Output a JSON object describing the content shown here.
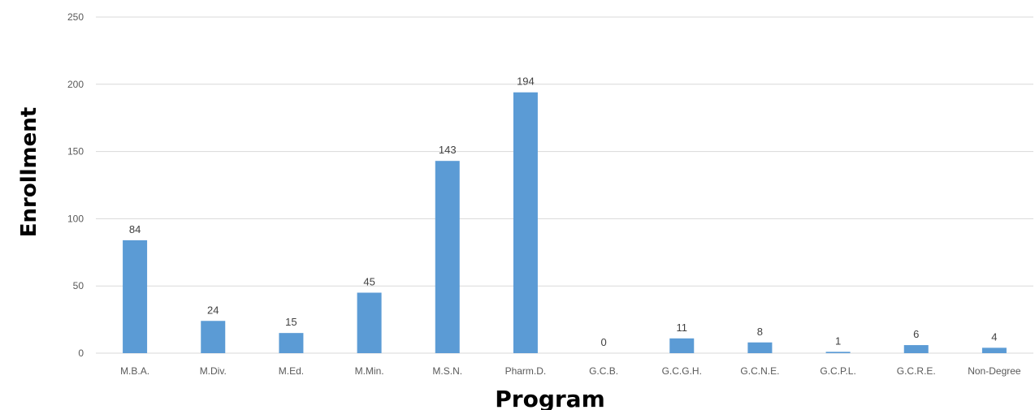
{
  "chart_data": {
    "type": "bar",
    "xlabel": "Program",
    "ylabel": "Enrollment",
    "ylim": [
      0,
      250
    ],
    "yticks": [
      0,
      50,
      100,
      150,
      200,
      250
    ],
    "grid": true,
    "categories": [
      "M.B.A.",
      "M.Div.",
      "M.Ed.",
      "M.Min.",
      "M.S.N.",
      "Pharm.D.",
      "G.C.B.",
      "G.C.G.H.",
      "G.C.N.E.",
      "G.C.P.L.",
      "G.C.R.E.",
      "Non-Degree"
    ],
    "values": [
      84,
      24,
      15,
      45,
      143,
      194,
      0,
      11,
      8,
      1,
      6,
      4
    ],
    "data_labels": [
      "84",
      "24",
      "15",
      "45",
      "143",
      "194",
      "0",
      "11",
      "8",
      "1",
      "6",
      "4"
    ],
    "colors": {
      "bar": "#5b9bd5",
      "grid": "#d9d9d9"
    }
  }
}
